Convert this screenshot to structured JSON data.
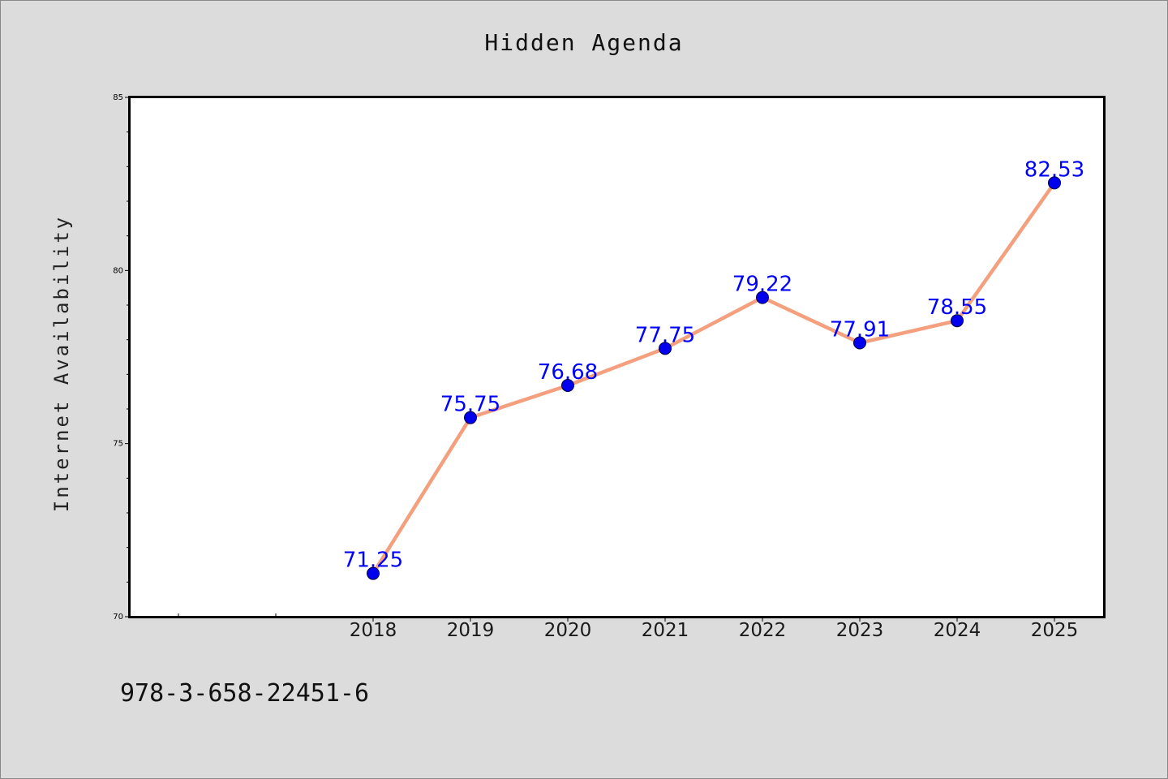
{
  "chart_data": {
    "type": "line",
    "title": "Hidden Agenda",
    "xlabel": "",
    "ylabel": "Internet Availability",
    "categories": [
      "2018",
      "2019",
      "2020",
      "2021",
      "2022",
      "2023",
      "2024",
      "2025"
    ],
    "series": [
      {
        "values": [
          71.25,
          75.75,
          76.68,
          77.75,
          79.22,
          77.91,
          78.55,
          82.53
        ],
        "data_labels": [
          "71.25",
          "75.75",
          "76.68",
          "77.75",
          "79.22",
          "77.91",
          "78.55",
          "82.53"
        ],
        "line_color": "#f4a07e",
        "marker_color": "#0000ee",
        "label_color": "#0000ff"
      }
    ],
    "ylim": [
      70,
      85
    ],
    "yticks": [
      "70",
      "75",
      "80",
      "85"
    ],
    "grid": false,
    "legend": "none"
  },
  "footer_text": "978-3-658-22451-6",
  "colors": {
    "background": "#dcdcdc",
    "plot_area": "#ffffff",
    "axis": "#000000"
  }
}
